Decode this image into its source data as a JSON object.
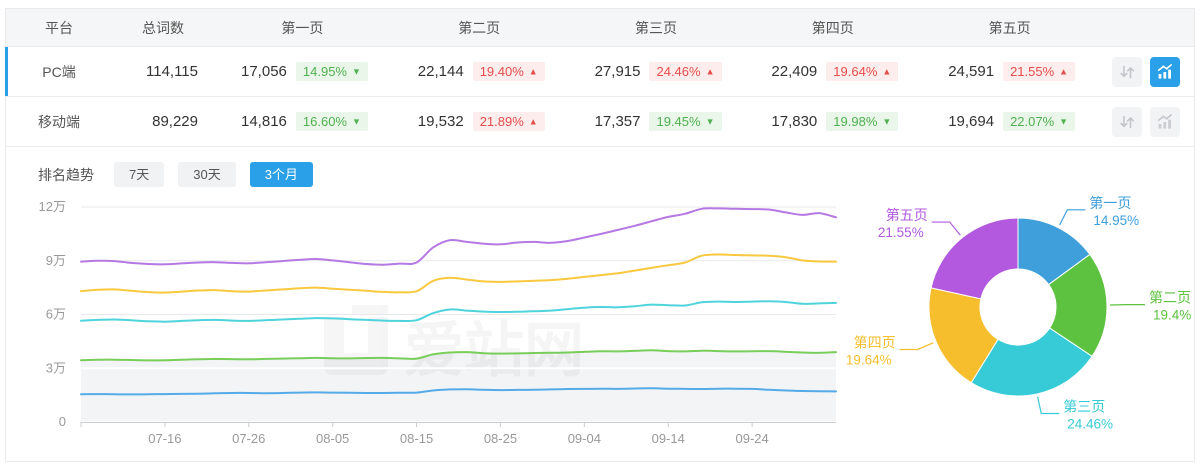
{
  "table": {
    "headers": {
      "platform": "平台",
      "total": "总词数",
      "pages": [
        "第一页",
        "第二页",
        "第三页",
        "第四页",
        "第五页"
      ]
    },
    "rows": [
      {
        "platform": "PC端",
        "total": "114,115",
        "active": true,
        "pages": [
          {
            "value": "17,056",
            "pct": "14.95%",
            "dir": "down"
          },
          {
            "value": "22,144",
            "pct": "19.40%",
            "dir": "up"
          },
          {
            "value": "27,915",
            "pct": "24.46%",
            "dir": "up"
          },
          {
            "value": "22,409",
            "pct": "19.64%",
            "dir": "up"
          },
          {
            "value": "24,591",
            "pct": "21.55%",
            "dir": "up"
          }
        ]
      },
      {
        "platform": "移动端",
        "total": "89,229",
        "active": false,
        "pages": [
          {
            "value": "14,816",
            "pct": "16.60%",
            "dir": "down"
          },
          {
            "value": "19,532",
            "pct": "21.89%",
            "dir": "up"
          },
          {
            "value": "17,357",
            "pct": "19.45%",
            "dir": "down"
          },
          {
            "value": "17,830",
            "pct": "19.98%",
            "dir": "down"
          },
          {
            "value": "19,694",
            "pct": "22.07%",
            "dir": "down"
          }
        ]
      }
    ]
  },
  "trend": {
    "label": "排名趋势",
    "ranges": [
      {
        "label": "7天",
        "active": false
      },
      {
        "label": "30天",
        "active": false
      },
      {
        "label": "3个月",
        "active": true
      }
    ]
  },
  "watermark": "爱站网",
  "colors": {
    "accent_blue": "#2aa0e8",
    "badge_up_red": "#e64c4c",
    "badge_down_green": "#4fb14f",
    "line_palette": {
      "page1": "#55abe8",
      "page2": "#79ce5b",
      "page3": "#4fd3dd",
      "page4": "#f8c83f",
      "page5": "#b678e3"
    },
    "donut_palette": {
      "page1": "#3e9fdb",
      "page2": "#5cc23f",
      "page3": "#36cbd6",
      "page4": "#f6be2c",
      "page5": "#b259df"
    }
  },
  "chart_data": [
    {
      "type": "line",
      "title": "排名趋势 (3个月)",
      "ylabels": [
        "0",
        "3万",
        "6万",
        "9万",
        "12万"
      ],
      "ylim": [
        0,
        12
      ],
      "unit": "万",
      "grid": true,
      "xticklabels": [
        "07-16",
        "07-26",
        "08-05",
        "08-15",
        "08-25",
        "09-04",
        "09-14",
        "09-24"
      ],
      "xtick_indices": [
        5,
        10,
        15,
        20,
        25,
        30,
        35,
        40
      ],
      "series": [
        {
          "name": "第一页",
          "color": "#55abe8",
          "area": false,
          "values": [
            1.55,
            1.56,
            1.55,
            1.54,
            1.55,
            1.56,
            1.57,
            1.58,
            1.6,
            1.62,
            1.62,
            1.61,
            1.62,
            1.64,
            1.65,
            1.64,
            1.63,
            1.62,
            1.62,
            1.63,
            1.64,
            1.76,
            1.82,
            1.83,
            1.8,
            1.78,
            1.79,
            1.8,
            1.82,
            1.84,
            1.85,
            1.86,
            1.85,
            1.87,
            1.88,
            1.86,
            1.85,
            1.84,
            1.86,
            1.86,
            1.85,
            1.8,
            1.76,
            1.73,
            1.72,
            1.71
          ]
        },
        {
          "name": "第二页",
          "color": "#79ce5b",
          "area": true,
          "values": [
            3.45,
            3.47,
            3.48,
            3.46,
            3.44,
            3.45,
            3.48,
            3.5,
            3.52,
            3.51,
            3.5,
            3.52,
            3.54,
            3.56,
            3.58,
            3.56,
            3.55,
            3.57,
            3.58,
            3.55,
            3.54,
            3.78,
            3.88,
            3.9,
            3.84,
            3.82,
            3.83,
            3.85,
            3.86,
            3.88,
            3.92,
            3.95,
            3.94,
            3.97,
            4.0,
            3.96,
            3.94,
            3.98,
            3.96,
            3.94,
            3.95,
            3.96,
            3.92,
            3.88,
            3.86,
            3.9
          ]
        },
        {
          "name": "第三页",
          "color": "#4fd3dd",
          "area": false,
          "values": [
            5.65,
            5.7,
            5.72,
            5.68,
            5.62,
            5.6,
            5.64,
            5.68,
            5.7,
            5.66,
            5.64,
            5.68,
            5.72,
            5.76,
            5.8,
            5.78,
            5.74,
            5.7,
            5.66,
            5.64,
            5.68,
            6.08,
            6.28,
            6.22,
            6.16,
            6.14,
            6.15,
            6.18,
            6.22,
            6.3,
            6.38,
            6.42,
            6.4,
            6.46,
            6.55,
            6.52,
            6.5,
            6.68,
            6.72,
            6.7,
            6.72,
            6.74,
            6.7,
            6.6,
            6.62,
            6.65
          ]
        },
        {
          "name": "第四页",
          "color": "#f8c83f",
          "area": false,
          "values": [
            7.3,
            7.38,
            7.4,
            7.32,
            7.25,
            7.22,
            7.28,
            7.34,
            7.36,
            7.3,
            7.28,
            7.34,
            7.4,
            7.46,
            7.5,
            7.44,
            7.38,
            7.32,
            7.26,
            7.24,
            7.3,
            7.88,
            8.05,
            7.95,
            7.85,
            7.82,
            7.85,
            7.88,
            7.92,
            8.0,
            8.1,
            8.2,
            8.3,
            8.45,
            8.6,
            8.75,
            8.9,
            9.28,
            9.35,
            9.32,
            9.3,
            9.28,
            9.2,
            9.02,
            8.96,
            8.95
          ]
        },
        {
          "name": "第五页",
          "color": "#b678e3",
          "area": false,
          "values": [
            8.95,
            9.0,
            8.98,
            8.88,
            8.82,
            8.8,
            8.85,
            8.9,
            8.92,
            8.88,
            8.86,
            8.92,
            8.98,
            9.05,
            9.1,
            9.02,
            8.92,
            8.82,
            8.78,
            8.84,
            8.9,
            9.75,
            10.15,
            10.05,
            9.95,
            9.92,
            10.02,
            10.05,
            10.0,
            10.1,
            10.3,
            10.5,
            10.72,
            10.95,
            11.2,
            11.45,
            11.62,
            11.9,
            11.92,
            11.9,
            11.88,
            11.86,
            11.7,
            11.56,
            11.66,
            11.42
          ]
        }
      ]
    },
    {
      "type": "donut",
      "slices": [
        {
          "label": "第一页",
          "pct": 14.95,
          "display": "14.95%",
          "color": "#3e9fdb"
        },
        {
          "label": "第二页",
          "pct": 19.4,
          "display": "19.4%",
          "color": "#5cc23f"
        },
        {
          "label": "第三页",
          "pct": 24.46,
          "display": "24.46%",
          "color": "#36cbd6"
        },
        {
          "label": "第四页",
          "pct": 19.64,
          "display": "19.64%",
          "color": "#f6be2c"
        },
        {
          "label": "第五页",
          "pct": 21.55,
          "display": "21.55%",
          "color": "#b259df"
        }
      ]
    }
  ]
}
